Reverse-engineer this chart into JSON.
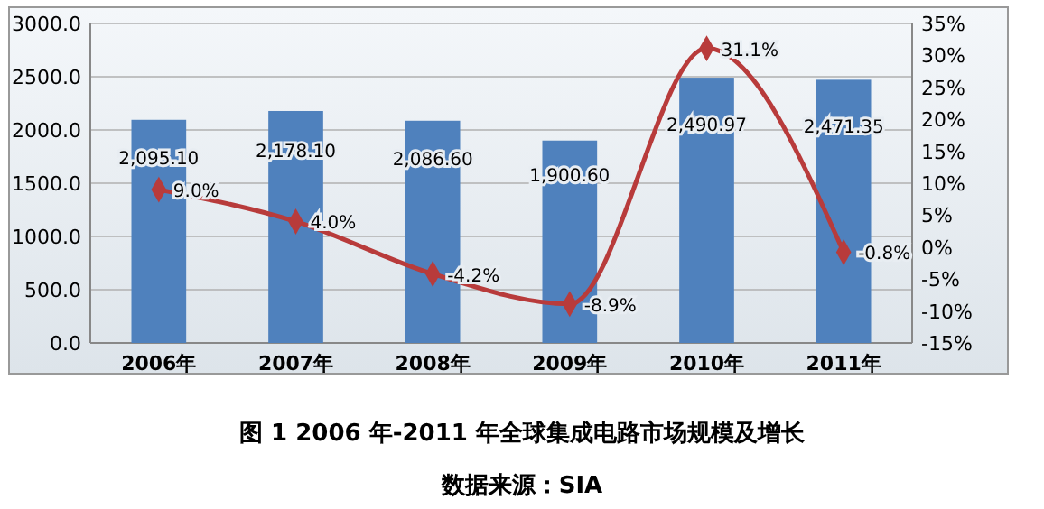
{
  "chart_data": {
    "type": "bar",
    "title": "图 1 2006 年-2011 年全球集成电路市场规模及增长",
    "annotations": [
      "数据来源：SIA"
    ],
    "categories": [
      "2006年",
      "2007年",
      "2008年",
      "2009年",
      "2010年",
      "2011年"
    ],
    "series": [
      {
        "color": "#4f81bd",
        "values": [
          2095.1,
          2178.1,
          2086.6,
          1900.6,
          2490.97,
          2471.35
        ],
        "value_labels": [
          "2,095.10",
          "2,178.10",
          "2,086.60",
          "1,900.60",
          "2,490.97",
          "2,471.35"
        ]
      },
      {
        "type": "line",
        "axis": "y2",
        "color": "#b83b3b",
        "marker": "diamond",
        "values": [
          9.0,
          4.0,
          -4.2,
          -8.9,
          31.1,
          -0.8
        ],
        "value_labels": [
          "9.0%",
          "4.0%",
          "-4.2%",
          "-8.9%",
          "31.1%",
          "-0.8%"
        ]
      }
    ],
    "ylim": [
      0,
      3000
    ],
    "yticks": [
      {
        "value": 0,
        "label": "0.0"
      },
      {
        "value": 500,
        "label": "500.0"
      },
      {
        "value": 1000,
        "label": "1000.0"
      },
      {
        "value": 1500,
        "label": "1500.0"
      },
      {
        "value": 2000,
        "label": "2000.0"
      },
      {
        "value": 2500,
        "label": "2500.0"
      },
      {
        "value": 3000,
        "label": "3000.0"
      }
    ],
    "y2lim": [
      -15,
      35
    ],
    "y2ticks": [
      {
        "value": -15,
        "label": "-15%"
      },
      {
        "value": -10,
        "label": "-10%"
      },
      {
        "value": -5,
        "label": "-5%"
      },
      {
        "value": 0,
        "label": "0%"
      },
      {
        "value": 5,
        "label": "5%"
      },
      {
        "value": 10,
        "label": "10%"
      },
      {
        "value": 15,
        "label": "15%"
      },
      {
        "value": 20,
        "label": "20%"
      },
      {
        "value": 25,
        "label": "25%"
      },
      {
        "value": 30,
        "label": "30%"
      },
      {
        "value": 35,
        "label": "35%"
      }
    ],
    "grid": "y"
  }
}
